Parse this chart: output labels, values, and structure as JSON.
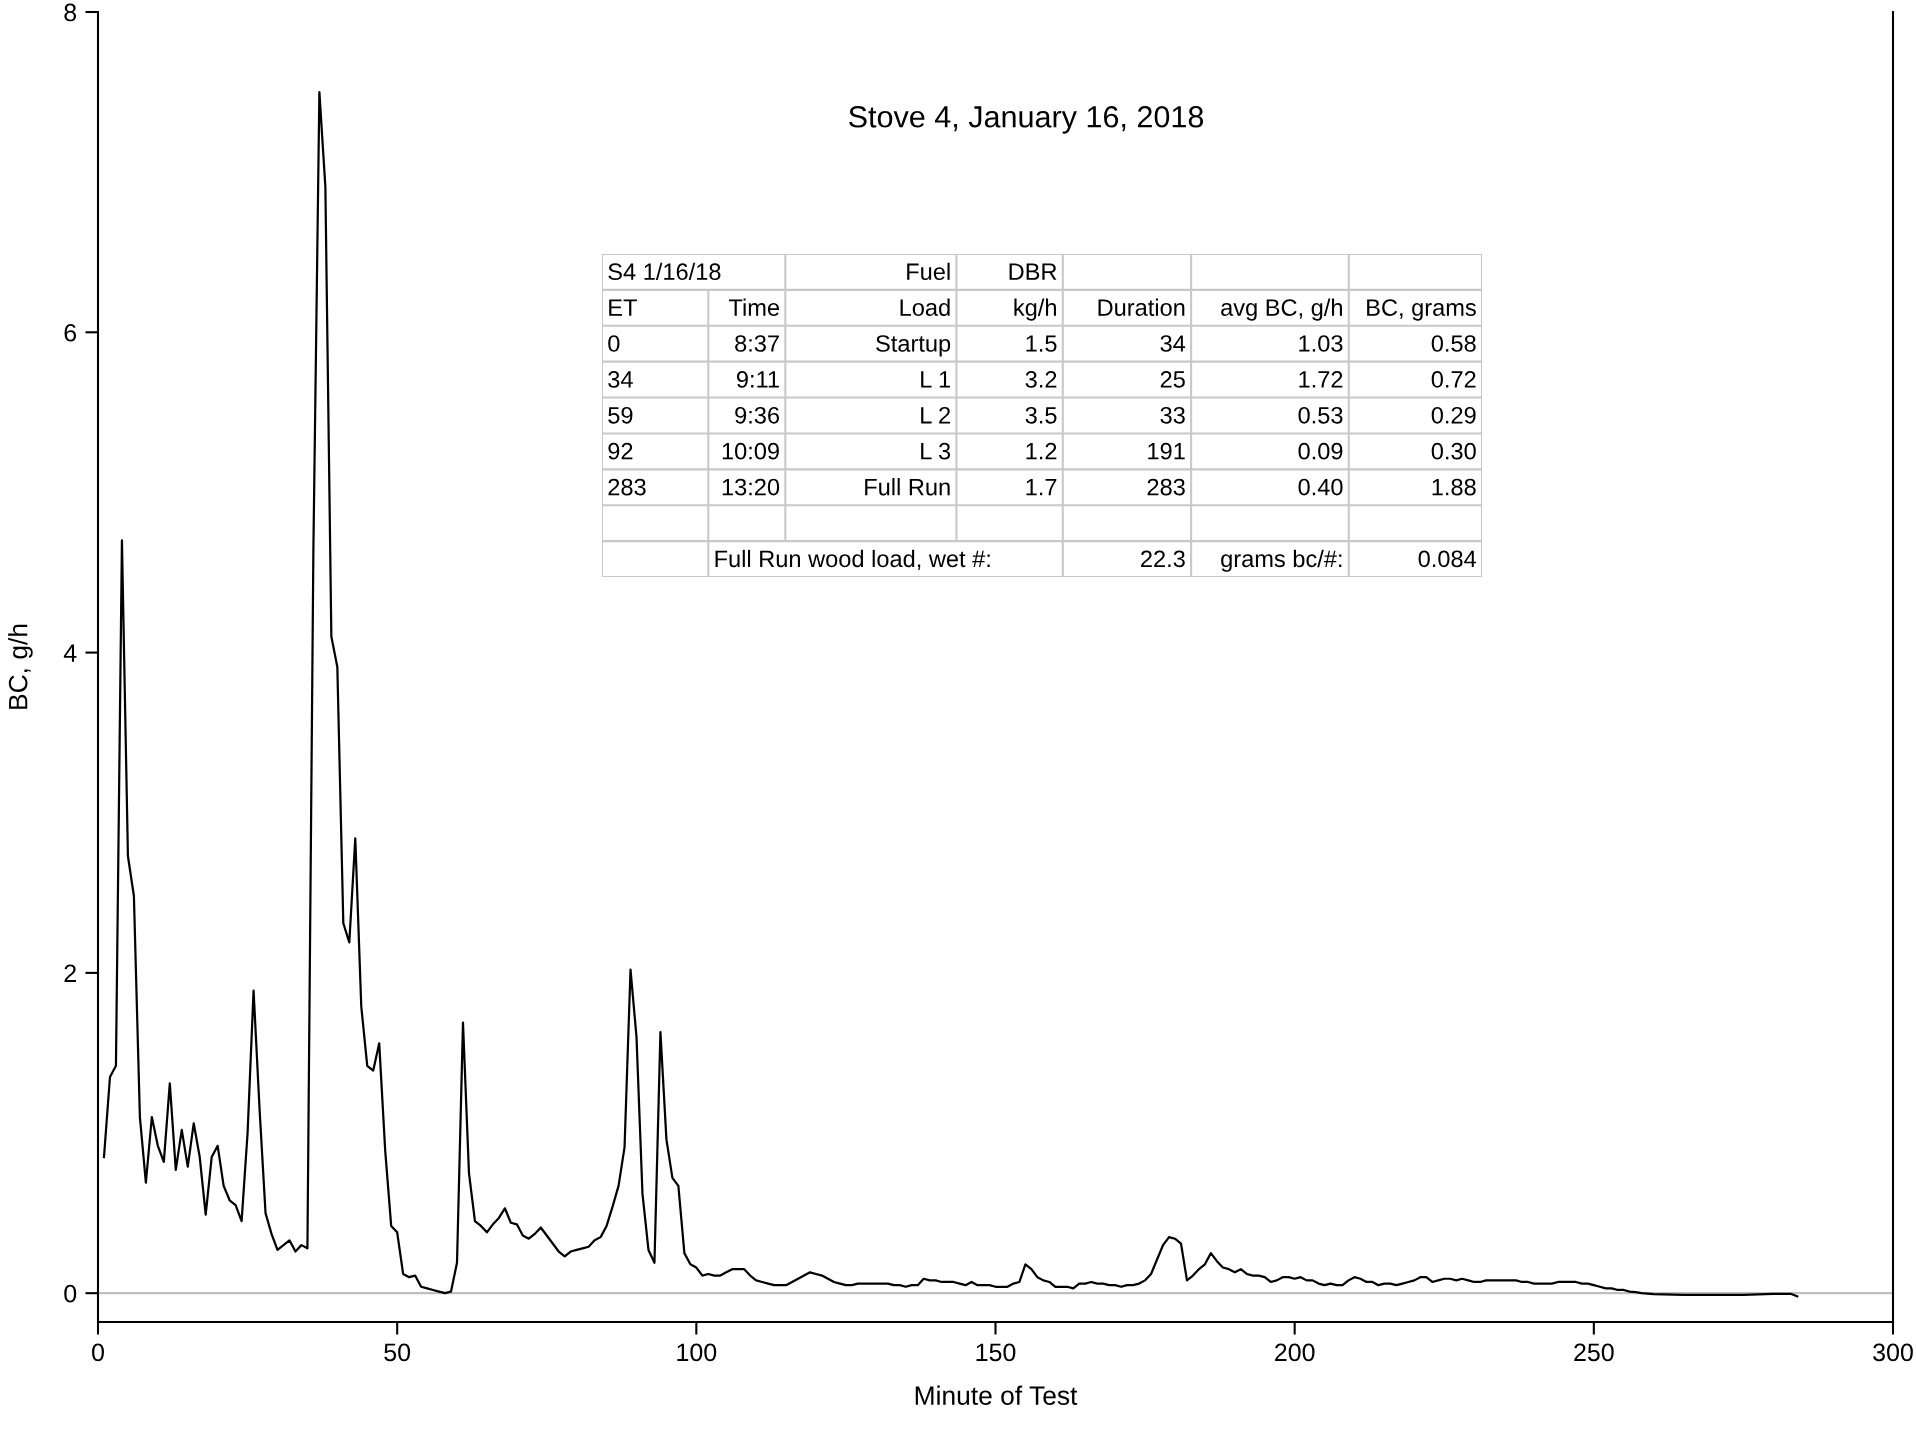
{
  "chart_data": [
    {
      "type": "line",
      "title": "Stove 4, January 16, 2018",
      "xlabel": "Minute of Test",
      "ylabel": "BC, g/h",
      "xlim": [
        0,
        300
      ],
      "xticks": [
        0,
        50,
        100,
        150,
        200,
        250,
        300
      ],
      "ylim": [
        -0.18,
        8
      ],
      "yticks": [
        0,
        2,
        4,
        6,
        8
      ],
      "grid": false,
      "legend": false,
      "marker": "none",
      "line_style": "solid",
      "ref_lines": [
        {
          "axis": "y",
          "value": 0,
          "label": null,
          "color": "#bfbfbf",
          "line_style": "solid"
        }
      ],
      "series": [
        {
          "color": "#000000",
          "x": [
            1,
            2,
            3,
            4,
            5,
            6,
            7,
            8,
            9,
            10,
            11,
            12,
            13,
            14,
            15,
            16,
            17,
            18,
            19,
            20,
            21,
            22,
            23,
            24,
            25,
            26,
            27,
            28,
            29,
            30,
            31,
            32,
            33,
            34,
            35,
            36,
            37,
            38,
            39,
            40,
            41,
            42,
            43,
            44,
            45,
            46,
            47,
            48,
            49,
            50,
            51,
            52,
            53,
            54,
            55,
            56,
            57,
            58,
            59,
            60,
            61,
            62,
            63,
            64,
            65,
            66,
            67,
            68,
            69,
            70,
            71,
            72,
            73,
            74,
            75,
            76,
            77,
            78,
            79,
            80,
            81,
            82,
            83,
            84,
            85,
            86,
            87,
            88,
            89,
            90,
            91,
            92,
            93,
            94,
            95,
            96,
            97,
            98,
            99,
            100,
            101,
            102,
            103,
            104,
            105,
            106,
            107,
            108,
            109,
            110,
            111,
            112,
            113,
            114,
            115,
            116,
            117,
            118,
            119,
            120,
            121,
            122,
            123,
            124,
            125,
            126,
            127,
            128,
            129,
            130,
            131,
            132,
            133,
            134,
            135,
            136,
            137,
            138,
            139,
            140,
            141,
            142,
            143,
            144,
            145,
            146,
            147,
            148,
            149,
            150,
            151,
            152,
            153,
            154,
            155,
            156,
            157,
            158,
            159,
            160,
            161,
            162,
            163,
            164,
            165,
            166,
            167,
            168,
            169,
            170,
            171,
            172,
            173,
            174,
            175,
            176,
            177,
            178,
            179,
            180,
            181,
            182,
            183,
            184,
            185,
            186,
            187,
            188,
            189,
            190,
            191,
            192,
            193,
            194,
            195,
            196,
            197,
            198,
            199,
            200,
            201,
            202,
            203,
            204,
            205,
            206,
            207,
            208,
            209,
            210,
            211,
            212,
            213,
            214,
            215,
            216,
            217,
            218,
            219,
            220,
            221,
            222,
            223,
            224,
            225,
            226,
            227,
            228,
            229,
            230,
            231,
            232,
            233,
            234,
            235,
            236,
            237,
            238,
            239,
            240,
            241,
            242,
            243,
            244,
            245,
            246,
            247,
            248,
            249,
            250,
            251,
            252,
            253,
            254,
            255,
            256,
            257,
            258,
            260,
            265,
            270,
            275,
            280,
            283,
            284
          ],
          "values": [
            0.85,
            1.35,
            1.42,
            4.7,
            2.73,
            2.48,
            1.1,
            0.69,
            1.1,
            0.92,
            0.82,
            1.31,
            0.77,
            1.02,
            0.79,
            1.06,
            0.85,
            0.49,
            0.85,
            0.92,
            0.67,
            0.58,
            0.55,
            0.45,
            1.0,
            1.89,
            1.15,
            0.5,
            0.37,
            0.27,
            0.3,
            0.33,
            0.26,
            0.3,
            0.28,
            4.65,
            7.5,
            6.91,
            4.1,
            3.91,
            2.31,
            2.19,
            2.84,
            1.79,
            1.42,
            1.39,
            1.56,
            0.89,
            0.42,
            0.38,
            0.12,
            0.1,
            0.11,
            0.04,
            0.03,
            0.02,
            0.01,
            0.0,
            0.01,
            0.19,
            1.69,
            0.75,
            0.45,
            0.42,
            0.38,
            0.43,
            0.47,
            0.53,
            0.44,
            0.43,
            0.36,
            0.34,
            0.37,
            0.41,
            0.36,
            0.31,
            0.26,
            0.23,
            0.26,
            0.27,
            0.28,
            0.29,
            0.33,
            0.35,
            0.42,
            0.54,
            0.67,
            0.91,
            2.02,
            1.6,
            0.62,
            0.27,
            0.19,
            1.63,
            0.96,
            0.72,
            0.67,
            0.25,
            0.18,
            0.16,
            0.11,
            0.12,
            0.11,
            0.11,
            0.13,
            0.15,
            0.15,
            0.15,
            0.11,
            0.08,
            0.07,
            0.06,
            0.05,
            0.05,
            0.05,
            0.07,
            0.09,
            0.11,
            0.13,
            0.12,
            0.11,
            0.09,
            0.07,
            0.06,
            0.05,
            0.05,
            0.06,
            0.06,
            0.06,
            0.06,
            0.06,
            0.06,
            0.05,
            0.05,
            0.04,
            0.05,
            0.05,
            0.09,
            0.08,
            0.08,
            0.07,
            0.07,
            0.07,
            0.06,
            0.05,
            0.07,
            0.05,
            0.05,
            0.05,
            0.04,
            0.04,
            0.04,
            0.06,
            0.07,
            0.18,
            0.15,
            0.1,
            0.08,
            0.07,
            0.04,
            0.04,
            0.04,
            0.03,
            0.06,
            0.06,
            0.07,
            0.06,
            0.06,
            0.05,
            0.05,
            0.04,
            0.05,
            0.05,
            0.06,
            0.08,
            0.12,
            0.21,
            0.3,
            0.35,
            0.34,
            0.31,
            0.08,
            0.11,
            0.15,
            0.18,
            0.25,
            0.2,
            0.16,
            0.15,
            0.13,
            0.15,
            0.12,
            0.11,
            0.11,
            0.1,
            0.07,
            0.08,
            0.1,
            0.1,
            0.09,
            0.1,
            0.08,
            0.08,
            0.06,
            0.05,
            0.06,
            0.05,
            0.05,
            0.08,
            0.1,
            0.09,
            0.07,
            0.07,
            0.05,
            0.06,
            0.06,
            0.05,
            0.06,
            0.07,
            0.08,
            0.1,
            0.1,
            0.07,
            0.08,
            0.09,
            0.09,
            0.08,
            0.09,
            0.08,
            0.07,
            0.07,
            0.08,
            0.08,
            0.08,
            0.08,
            0.08,
            0.08,
            0.07,
            0.07,
            0.06,
            0.06,
            0.06,
            0.06,
            0.07,
            0.07,
            0.07,
            0.07,
            0.06,
            0.06,
            0.05,
            0.04,
            0.03,
            0.03,
            0.02,
            0.02,
            0.01,
            0.006,
            0,
            -0.006,
            -0.01,
            -0.01,
            -0.01,
            -0.005,
            -0.005,
            -0.02
          ]
        }
      ]
    },
    {
      "type": "other",
      "cell_labels": [
        [
          "S4 1/16/18",
          null,
          "Fuel",
          "DBR",
          null,
          null,
          null
        ],
        [
          "ET",
          "Time",
          "Load",
          "kg/h",
          "Duration",
          "avg BC, g/h",
          "BC, grams"
        ],
        [
          "0",
          "8:37",
          "Startup",
          "1.5",
          "34",
          "1.03",
          "0.58"
        ],
        [
          "34",
          "9:11",
          "L 1",
          "3.2",
          "25",
          "1.72",
          "0.72"
        ],
        [
          "59",
          "9:36",
          "L 2",
          "3.5",
          "33",
          "0.53",
          "0.29"
        ],
        [
          "92",
          "10:09",
          "L 3",
          "1.2",
          "191",
          "0.09",
          "0.30"
        ],
        [
          "283",
          "13:20",
          "Full Run",
          "1.7",
          "283",
          "0.40",
          "1.88"
        ],
        [
          null,
          null,
          null,
          null,
          null,
          null,
          null
        ],
        [
          null,
          "Full Run wood load, wet #:",
          null,
          null,
          "22.3",
          "grams bc/#:",
          "0.084"
        ]
      ]
    }
  ]
}
